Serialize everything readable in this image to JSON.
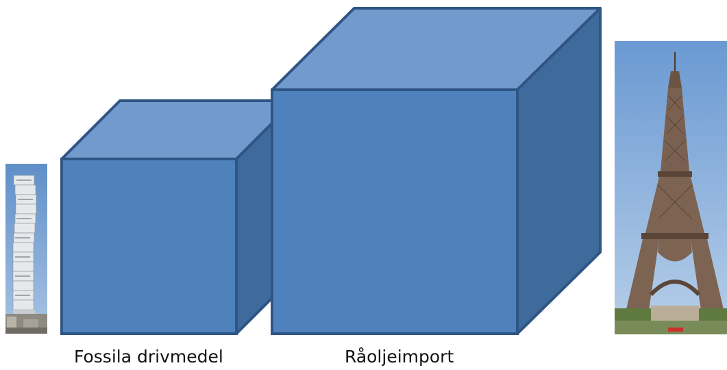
{
  "labels": {
    "left_cube": "Fossila drivmedel",
    "right_cube": "Råoljeimport"
  },
  "images": {
    "left_photo": "turning-torso-tower",
    "right_photo": "eiffel-tower"
  },
  "colors": {
    "cube_front": "#4f81bd",
    "cube_top": "#729acd",
    "cube_side": "#3f6a9c",
    "cube_stroke": "#2e5584",
    "sky": "#7aa3d6"
  }
}
